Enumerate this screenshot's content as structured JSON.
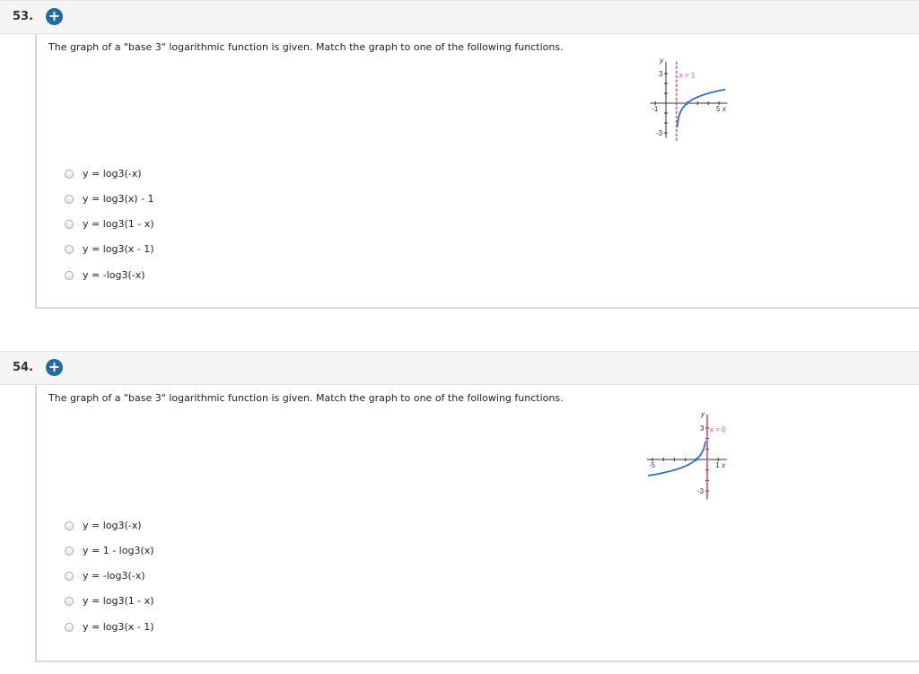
{
  "questions": [
    {
      "number": "53.",
      "prompt": "The graph of a \"base 3\" logarithmic function is given. Match the graph to one of the following functions.",
      "options": [
        "y = log3(-x)",
        "y = log3(x) - 1",
        "y = log3(1 - x)",
        "y = log3(x - 1)",
        "y = -log3(-x)"
      ],
      "graph": {
        "asymptote_label": "x = 1",
        "x_axis_label": "x",
        "y_axis_label": "y",
        "tick_labels": [
          "-1",
          "5",
          "3",
          "-3"
        ],
        "asymptote_x": 1,
        "function": "log3(x - 1)",
        "curve_color": "#2a6fd6",
        "asymptote_color": "#ee3a6a"
      }
    },
    {
      "number": "54.",
      "prompt": "The graph of a \"base 3\" logarithmic function is given. Match the graph to one of the following functions.",
      "options": [
        "y = log3(-x)",
        "y = 1 - log3(x)",
        "y = -log3(-x)",
        "y = log3(1 - x)",
        "y = log3(x - 1)"
      ],
      "graph": {
        "asymptote_label": "x = 0",
        "x_axis_label": "x",
        "y_axis_label": "y",
        "tick_labels": [
          "-5",
          "1",
          "3",
          "-3"
        ],
        "asymptote_x": 0,
        "function": "-log3(-x)",
        "curve_color": "#2a6fd6",
        "asymptote_color": "#ee3a6a"
      }
    }
  ],
  "add_icon": "plus-circle-icon"
}
